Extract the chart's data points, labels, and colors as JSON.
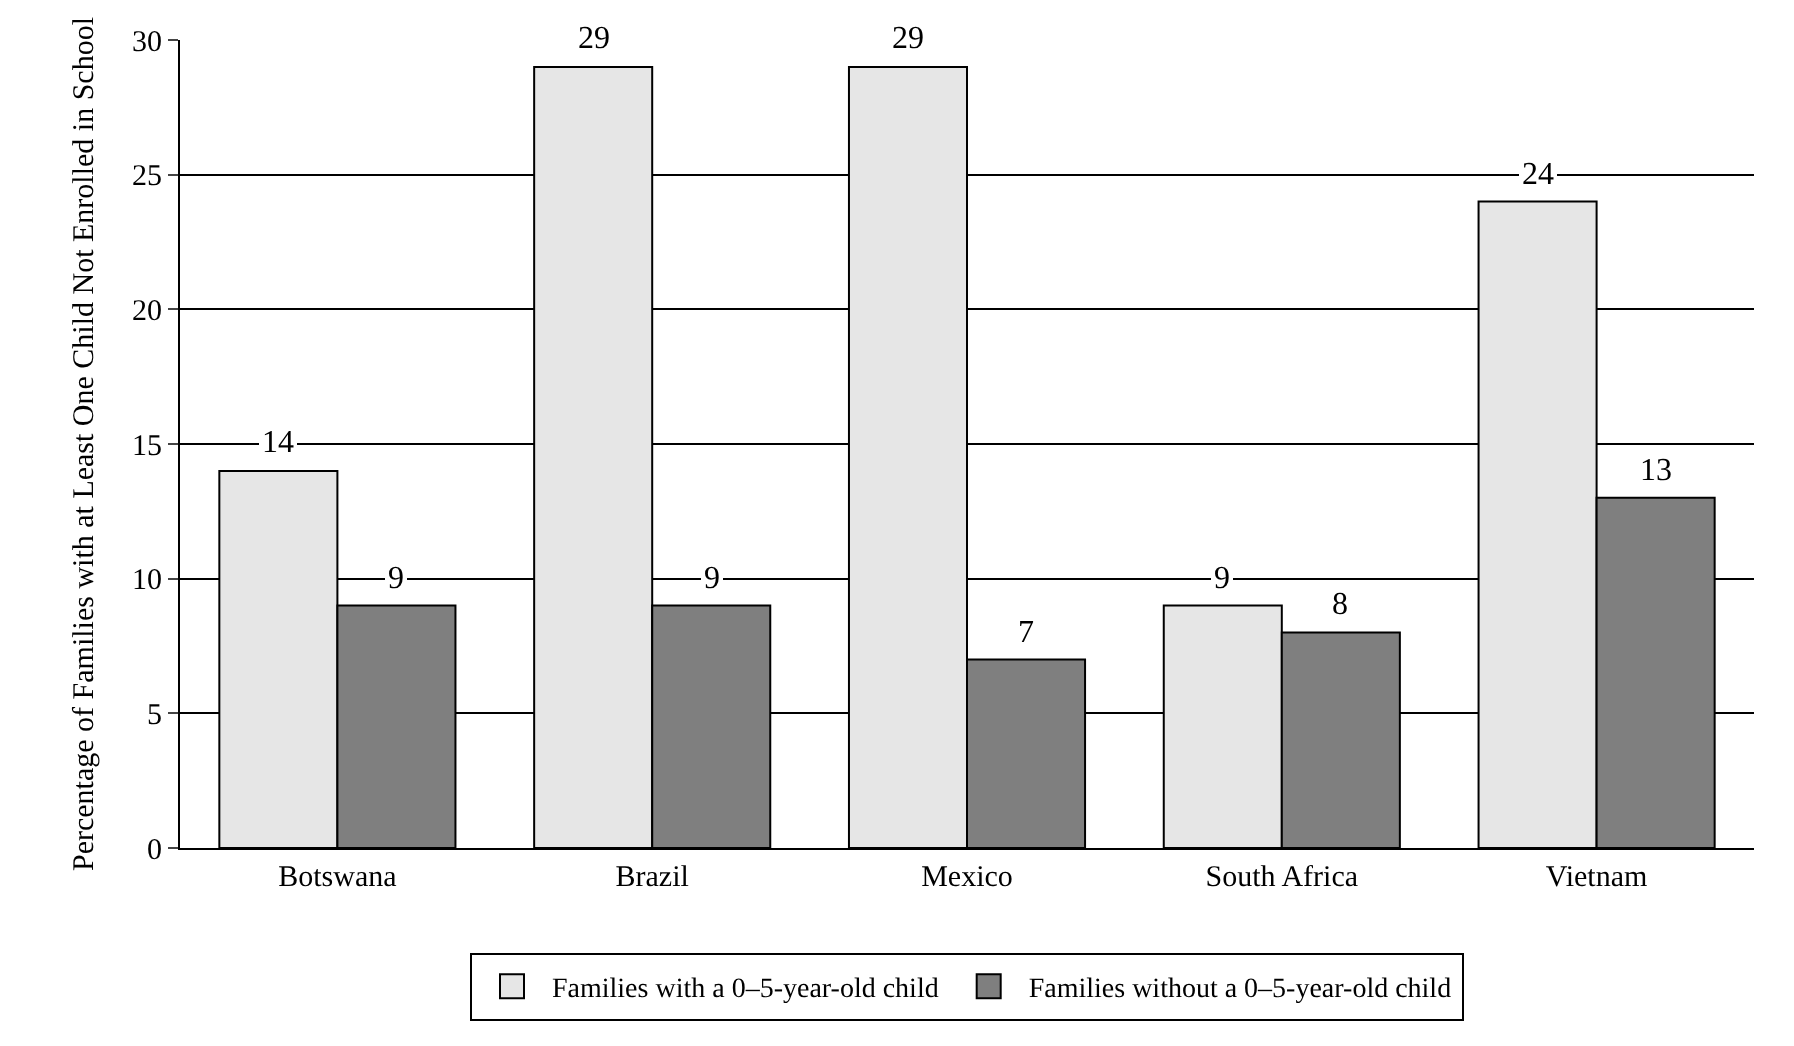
{
  "chart_data": {
    "type": "bar",
    "ylabel": "Percentage of Families with at Least One Child Not Enrolled in School",
    "categories": [
      "Botswana",
      "Brazil",
      "Mexico",
      "South Africa",
      "Vietnam"
    ],
    "series": [
      {
        "name": "Families with a 0–5-year-old child",
        "color": "#e6e6e6",
        "values": [
          14,
          29,
          29,
          9,
          24
        ]
      },
      {
        "name": "Families without a 0–5-year-old child",
        "color": "#7f7f7f",
        "values": [
          9,
          9,
          7,
          8,
          13
        ]
      }
    ],
    "ylim": [
      0,
      30
    ],
    "yticks": [
      0,
      5,
      10,
      15,
      20,
      25,
      30
    ],
    "grid": "y",
    "legend": "bottom",
    "data_labels": true
  }
}
